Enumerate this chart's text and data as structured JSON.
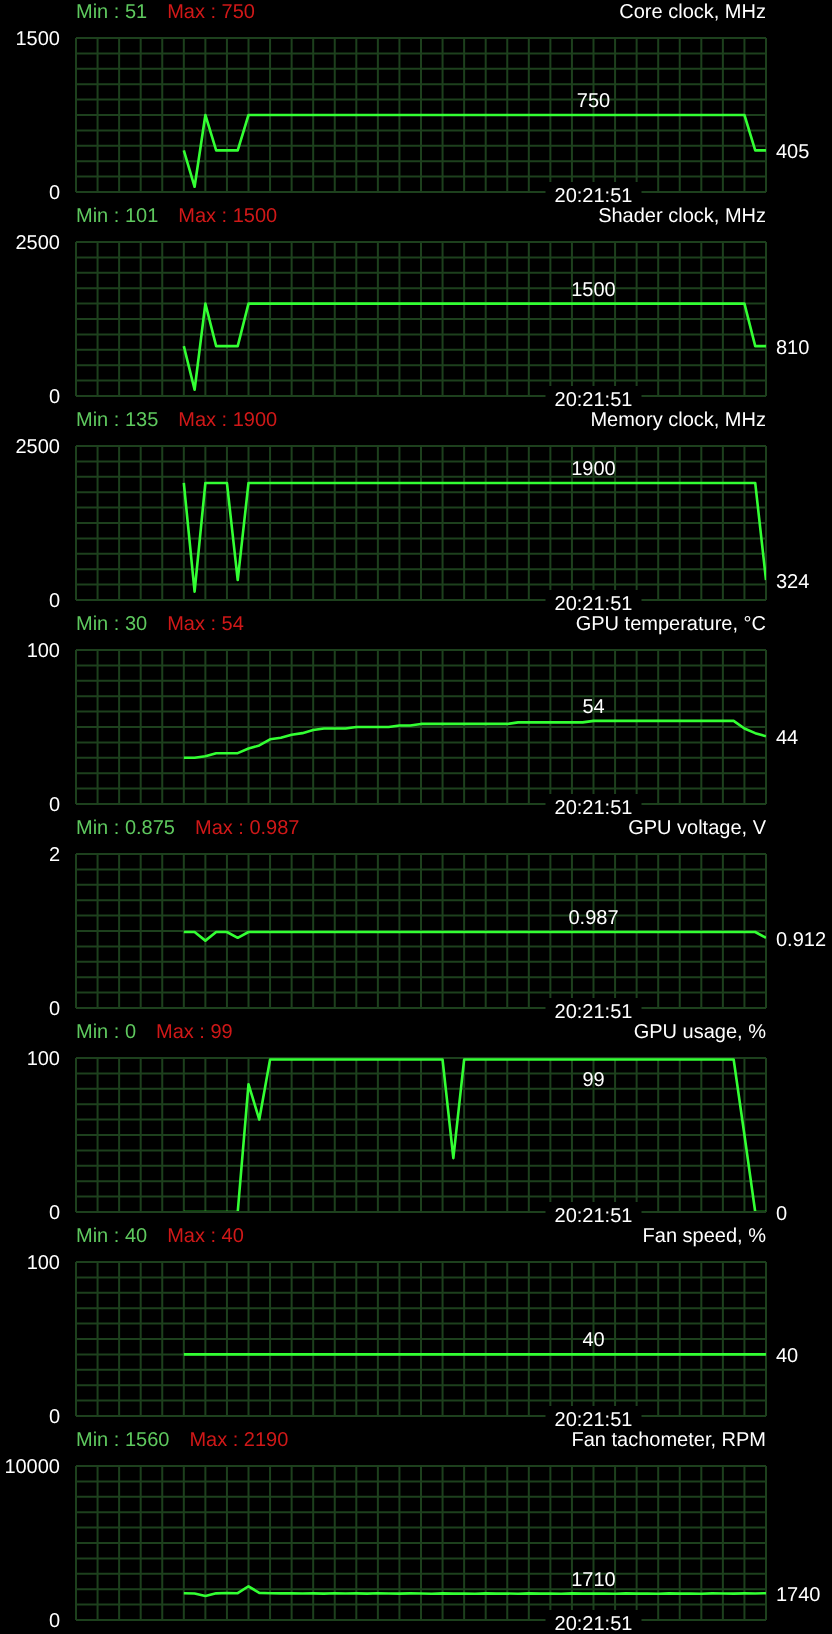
{
  "chart_data": [
    {
      "type": "line",
      "title": "Core clock, MHz",
      "annotations": [
        "Min : 51",
        "Max : 750",
        "20:21:51"
      ],
      "tick_labels": "y",
      "grid": true,
      "marker": "none",
      "ylim": [
        0,
        1500
      ],
      "yticks": [
        0,
        {
          "value": 150,
          "label": null
        },
        {
          "value": 300,
          "label": null
        },
        {
          "value": 450,
          "label": null
        },
        {
          "value": 600,
          "label": null
        },
        {
          "value": 750,
          "label": null
        },
        {
          "value": 900,
          "label": null
        },
        {
          "value": 1050,
          "label": null
        },
        {
          "value": 1200,
          "label": null
        },
        {
          "value": 1350,
          "label": null
        },
        1500
      ],
      "categories": [
        null,
        null,
        null,
        null,
        null,
        null,
        null,
        null,
        null,
        null,
        null,
        null,
        null,
        null,
        null,
        null,
        null,
        null,
        null,
        null,
        null,
        null,
        null,
        null,
        null,
        null,
        null,
        null,
        null,
        null,
        null,
        null,
        null,
        null,
        null,
        null,
        null,
        null,
        null,
        null,
        null,
        null,
        null,
        null,
        null,
        null,
        null,
        null,
        null,
        null,
        null,
        null,
        null,
        null,
        null,
        null,
        null,
        null,
        null,
        null,
        null,
        null,
        null,
        null,
        null
      ],
      "series": [
        {
          "color": "#33ff33",
          "values": [
            null,
            null,
            null,
            null,
            null,
            null,
            null,
            null,
            null,
            null,
            405,
            51,
            750,
            405,
            405,
            405,
            750,
            750,
            750,
            750,
            750,
            750,
            750,
            750,
            750,
            750,
            750,
            750,
            750,
            750,
            750,
            750,
            750,
            750,
            750,
            750,
            750,
            750,
            750,
            750,
            750,
            750,
            750,
            750,
            750,
            750,
            750,
            750,
            750,
            750,
            750,
            750,
            750,
            750,
            750,
            750,
            750,
            750,
            750,
            750,
            750,
            750,
            750,
            405,
            405
          ],
          "value_labels": [
            null,
            null,
            null,
            null,
            null,
            null,
            null,
            null,
            null,
            null,
            null,
            null,
            null,
            null,
            null,
            null,
            null,
            null,
            null,
            null,
            null,
            null,
            null,
            null,
            null,
            null,
            null,
            null,
            null,
            null,
            null,
            null,
            null,
            null,
            null,
            null,
            null,
            null,
            null,
            null,
            null,
            null,
            null,
            null,
            null,
            null,
            null,
            null,
            "750",
            null,
            null,
            null,
            null,
            null,
            null,
            null,
            null,
            null,
            null,
            null,
            null,
            null,
            null,
            null,
            "405"
          ]
        }
      ]
    },
    {
      "type": "line",
      "title": "Shader clock, MHz",
      "annotations": [
        "Min : 101",
        "Max : 1500",
        "20:21:51"
      ],
      "tick_labels": "y",
      "grid": true,
      "marker": "none",
      "ylim": [
        0,
        2500
      ],
      "yticks": [
        0,
        {
          "value": 250,
          "label": null
        },
        {
          "value": 500,
          "label": null
        },
        {
          "value": 750,
          "label": null
        },
        {
          "value": 1000,
          "label": null
        },
        {
          "value": 1250,
          "label": null
        },
        {
          "value": 1500,
          "label": null
        },
        {
          "value": 1750,
          "label": null
        },
        {
          "value": 2000,
          "label": null
        },
        {
          "value": 2250,
          "label": null
        },
        2500
      ],
      "categories": [
        null,
        null,
        null,
        null,
        null,
        null,
        null,
        null,
        null,
        null,
        null,
        null,
        null,
        null,
        null,
        null,
        null,
        null,
        null,
        null,
        null,
        null,
        null,
        null,
        null,
        null,
        null,
        null,
        null,
        null,
        null,
        null,
        null,
        null,
        null,
        null,
        null,
        null,
        null,
        null,
        null,
        null,
        null,
        null,
        null,
        null,
        null,
        null,
        null,
        null,
        null,
        null,
        null,
        null,
        null,
        null,
        null,
        null,
        null,
        null,
        null,
        null,
        null,
        null,
        null
      ],
      "series": [
        {
          "color": "#33ff33",
          "values": [
            null,
            null,
            null,
            null,
            null,
            null,
            null,
            null,
            null,
            null,
            810,
            101,
            1500,
            810,
            810,
            810,
            1500,
            1500,
            1500,
            1500,
            1500,
            1500,
            1500,
            1500,
            1500,
            1500,
            1500,
            1500,
            1500,
            1500,
            1500,
            1500,
            1500,
            1500,
            1500,
            1500,
            1500,
            1500,
            1500,
            1500,
            1500,
            1500,
            1500,
            1500,
            1500,
            1500,
            1500,
            1500,
            1500,
            1500,
            1500,
            1500,
            1500,
            1500,
            1500,
            1500,
            1500,
            1500,
            1500,
            1500,
            1500,
            1500,
            1500,
            810,
            810
          ],
          "value_labels": [
            null,
            null,
            null,
            null,
            null,
            null,
            null,
            null,
            null,
            null,
            null,
            null,
            null,
            null,
            null,
            null,
            null,
            null,
            null,
            null,
            null,
            null,
            null,
            null,
            null,
            null,
            null,
            null,
            null,
            null,
            null,
            null,
            null,
            null,
            null,
            null,
            null,
            null,
            null,
            null,
            null,
            null,
            null,
            null,
            null,
            null,
            null,
            null,
            "1500",
            null,
            null,
            null,
            null,
            null,
            null,
            null,
            null,
            null,
            null,
            null,
            null,
            null,
            null,
            null,
            "810"
          ]
        }
      ]
    },
    {
      "type": "line",
      "title": "Memory clock, MHz",
      "annotations": [
        "Min : 135",
        "Max : 1900",
        "20:21:51"
      ],
      "tick_labels": "y",
      "grid": true,
      "marker": "none",
      "ylim": [
        0,
        2500
      ],
      "yticks": [
        0,
        {
          "value": 250,
          "label": null
        },
        {
          "value": 500,
          "label": null
        },
        {
          "value": 750,
          "label": null
        },
        {
          "value": 1000,
          "label": null
        },
        {
          "value": 1250,
          "label": null
        },
        {
          "value": 1500,
          "label": null
        },
        {
          "value": 1750,
          "label": null
        },
        {
          "value": 2000,
          "label": null
        },
        {
          "value": 2250,
          "label": null
        },
        2500
      ],
      "categories": [
        null,
        null,
        null,
        null,
        null,
        null,
        null,
        null,
        null,
        null,
        null,
        null,
        null,
        null,
        null,
        null,
        null,
        null,
        null,
        null,
        null,
        null,
        null,
        null,
        null,
        null,
        null,
        null,
        null,
        null,
        null,
        null,
        null,
        null,
        null,
        null,
        null,
        null,
        null,
        null,
        null,
        null,
        null,
        null,
        null,
        null,
        null,
        null,
        null,
        null,
        null,
        null,
        null,
        null,
        null,
        null,
        null,
        null,
        null,
        null,
        null,
        null,
        null,
        null,
        null
      ],
      "series": [
        {
          "color": "#33ff33",
          "values": [
            null,
            null,
            null,
            null,
            null,
            null,
            null,
            null,
            null,
            null,
            1900,
            135,
            1900,
            1900,
            1900,
            324,
            1900,
            1900,
            1900,
            1900,
            1900,
            1900,
            1900,
            1900,
            1900,
            1900,
            1900,
            1900,
            1900,
            1900,
            1900,
            1900,
            1900,
            1900,
            1900,
            1900,
            1900,
            1900,
            1900,
            1900,
            1900,
            1900,
            1900,
            1900,
            1900,
            1900,
            1900,
            1900,
            1900,
            1900,
            1900,
            1900,
            1900,
            1900,
            1900,
            1900,
            1900,
            1900,
            1900,
            1900,
            1900,
            1900,
            1900,
            1900,
            324
          ],
          "value_labels": [
            null,
            null,
            null,
            null,
            null,
            null,
            null,
            null,
            null,
            null,
            null,
            null,
            null,
            null,
            null,
            null,
            null,
            null,
            null,
            null,
            null,
            null,
            null,
            null,
            null,
            null,
            null,
            null,
            null,
            null,
            null,
            null,
            null,
            null,
            null,
            null,
            null,
            null,
            null,
            null,
            null,
            null,
            null,
            null,
            null,
            null,
            null,
            null,
            "1900",
            null,
            null,
            null,
            null,
            null,
            null,
            null,
            null,
            null,
            null,
            null,
            null,
            null,
            null,
            null,
            "324"
          ]
        }
      ]
    },
    {
      "type": "line",
      "title": "GPU temperature, °C",
      "annotations": [
        "Min : 30",
        "Max : 54",
        "20:21:51"
      ],
      "tick_labels": "y",
      "grid": true,
      "marker": "none",
      "ylim": [
        0,
        100
      ],
      "yticks": [
        0,
        {
          "value": 10,
          "label": null
        },
        {
          "value": 20,
          "label": null
        },
        {
          "value": 30,
          "label": null
        },
        {
          "value": 40,
          "label": null
        },
        {
          "value": 50,
          "label": null
        },
        {
          "value": 60,
          "label": null
        },
        {
          "value": 70,
          "label": null
        },
        {
          "value": 80,
          "label": null
        },
        {
          "value": 90,
          "label": null
        },
        100
      ],
      "categories": [
        null,
        null,
        null,
        null,
        null,
        null,
        null,
        null,
        null,
        null,
        null,
        null,
        null,
        null,
        null,
        null,
        null,
        null,
        null,
        null,
        null,
        null,
        null,
        null,
        null,
        null,
        null,
        null,
        null,
        null,
        null,
        null,
        null,
        null,
        null,
        null,
        null,
        null,
        null,
        null,
        null,
        null,
        null,
        null,
        null,
        null,
        null,
        null,
        null,
        null,
        null,
        null,
        null,
        null,
        null,
        null,
        null,
        null,
        null,
        null,
        null,
        null,
        null,
        null,
        null
      ],
      "series": [
        {
          "color": "#33ff33",
          "values": [
            null,
            null,
            null,
            null,
            null,
            null,
            null,
            null,
            null,
            null,
            30,
            30,
            31,
            33,
            33,
            33,
            36,
            38,
            42,
            43,
            45,
            46,
            48,
            49,
            49,
            49,
            50,
            50,
            50,
            50,
            51,
            51,
            52,
            52,
            52,
            52,
            52,
            52,
            52,
            52,
            52,
            53,
            53,
            53,
            53,
            53,
            53,
            53,
            54,
            54,
            54,
            54,
            54,
            54,
            54,
            54,
            54,
            54,
            54,
            54,
            54,
            54,
            49,
            46,
            44
          ],
          "value_labels": [
            null,
            null,
            null,
            null,
            null,
            null,
            null,
            null,
            null,
            null,
            null,
            null,
            null,
            null,
            null,
            null,
            null,
            null,
            null,
            null,
            null,
            null,
            null,
            null,
            null,
            null,
            null,
            null,
            null,
            null,
            null,
            null,
            null,
            null,
            null,
            null,
            null,
            null,
            null,
            null,
            null,
            null,
            null,
            null,
            null,
            null,
            null,
            null,
            "54",
            null,
            null,
            null,
            null,
            null,
            null,
            null,
            null,
            null,
            null,
            null,
            null,
            null,
            null,
            null,
            "44"
          ]
        }
      ]
    },
    {
      "type": "line",
      "title": "GPU voltage, V",
      "annotations": [
        "Min : 0.875",
        "Max : 0.987",
        "20:21:51"
      ],
      "tick_labels": "y",
      "grid": true,
      "marker": "none",
      "ylim": [
        0,
        2
      ],
      "yticks": [
        0,
        {
          "value": 0.2,
          "label": null
        },
        {
          "value": 0.4,
          "label": null
        },
        {
          "value": 0.6,
          "label": null
        },
        {
          "value": 0.8,
          "label": null
        },
        {
          "value": 1,
          "label": null
        },
        {
          "value": 1.2,
          "label": null
        },
        {
          "value": 1.4,
          "label": null
        },
        {
          "value": 1.6,
          "label": null
        },
        {
          "value": 1.8,
          "label": null
        },
        2
      ],
      "categories": [
        null,
        null,
        null,
        null,
        null,
        null,
        null,
        null,
        null,
        null,
        null,
        null,
        null,
        null,
        null,
        null,
        null,
        null,
        null,
        null,
        null,
        null,
        null,
        null,
        null,
        null,
        null,
        null,
        null,
        null,
        null,
        null,
        null,
        null,
        null,
        null,
        null,
        null,
        null,
        null,
        null,
        null,
        null,
        null,
        null,
        null,
        null,
        null,
        null,
        null,
        null,
        null,
        null,
        null,
        null,
        null,
        null,
        null,
        null,
        null,
        null,
        null,
        null,
        null,
        null
      ],
      "series": [
        {
          "color": "#33ff33",
          "values": [
            null,
            null,
            null,
            null,
            null,
            null,
            null,
            null,
            null,
            null,
            0.987,
            0.987,
            0.875,
            0.987,
            0.987,
            0.912,
            0.987,
            0.987,
            0.987,
            0.987,
            0.987,
            0.987,
            0.987,
            0.987,
            0.987,
            0.987,
            0.987,
            0.987,
            0.987,
            0.987,
            0.987,
            0.987,
            0.987,
            0.987,
            0.987,
            0.987,
            0.987,
            0.987,
            0.987,
            0.987,
            0.987,
            0.987,
            0.987,
            0.987,
            0.987,
            0.987,
            0.987,
            0.987,
            0.987,
            0.987,
            0.987,
            0.987,
            0.987,
            0.987,
            0.987,
            0.987,
            0.987,
            0.987,
            0.987,
            0.987,
            0.987,
            0.987,
            0.987,
            0.987,
            0.912
          ],
          "value_labels": [
            null,
            null,
            null,
            null,
            null,
            null,
            null,
            null,
            null,
            null,
            null,
            null,
            null,
            null,
            null,
            null,
            null,
            null,
            null,
            null,
            null,
            null,
            null,
            null,
            null,
            null,
            null,
            null,
            null,
            null,
            null,
            null,
            null,
            null,
            null,
            null,
            null,
            null,
            null,
            null,
            null,
            null,
            null,
            null,
            null,
            null,
            null,
            null,
            "0.987",
            null,
            null,
            null,
            null,
            null,
            null,
            null,
            null,
            null,
            null,
            null,
            null,
            null,
            null,
            null,
            "0.912"
          ]
        }
      ]
    },
    {
      "type": "line",
      "title": "GPU usage, %",
      "annotations": [
        "Min : 0",
        "Max : 99",
        "20:21:51"
      ],
      "tick_labels": "y",
      "grid": true,
      "marker": "none",
      "ylim": [
        0,
        100
      ],
      "yticks": [
        0,
        {
          "value": 10,
          "label": null
        },
        {
          "value": 20,
          "label": null
        },
        {
          "value": 30,
          "label": null
        },
        {
          "value": 40,
          "label": null
        },
        {
          "value": 50,
          "label": null
        },
        {
          "value": 60,
          "label": null
        },
        {
          "value": 70,
          "label": null
        },
        {
          "value": 80,
          "label": null
        },
        {
          "value": 90,
          "label": null
        },
        100
      ],
      "categories": [
        null,
        null,
        null,
        null,
        null,
        null,
        null,
        null,
        null,
        null,
        null,
        null,
        null,
        null,
        null,
        null,
        null,
        null,
        null,
        null,
        null,
        null,
        null,
        null,
        null,
        null,
        null,
        null,
        null,
        null,
        null,
        null,
        null,
        null,
        null,
        null,
        null,
        null,
        null,
        null,
        null,
        null,
        null,
        null,
        null,
        null,
        null,
        null,
        null,
        null,
        null,
        null,
        null,
        null,
        null,
        null,
        null,
        null,
        null,
        null,
        null,
        null,
        null,
        null,
        null
      ],
      "series": [
        {
          "color": "#33ff33",
          "values": [
            null,
            null,
            null,
            null,
            null,
            null,
            null,
            null,
            null,
            null,
            0,
            0,
            0,
            0,
            0,
            0,
            83,
            60,
            99,
            99,
            99,
            99,
            99,
            99,
            99,
            99,
            99,
            99,
            99,
            99,
            99,
            99,
            99,
            99,
            99,
            35,
            99,
            99,
            99,
            99,
            99,
            99,
            99,
            99,
            99,
            99,
            99,
            99,
            99,
            99,
            99,
            99,
            99,
            99,
            99,
            99,
            99,
            99,
            99,
            99,
            99,
            99,
            50,
            0,
            0
          ],
          "value_labels": [
            null,
            null,
            null,
            null,
            null,
            null,
            null,
            null,
            null,
            null,
            null,
            null,
            null,
            null,
            null,
            null,
            null,
            null,
            null,
            null,
            null,
            null,
            null,
            null,
            null,
            null,
            null,
            null,
            null,
            null,
            null,
            null,
            null,
            null,
            null,
            null,
            null,
            null,
            null,
            null,
            null,
            null,
            null,
            null,
            null,
            null,
            null,
            null,
            "99",
            null,
            null,
            null,
            null,
            null,
            null,
            null,
            null,
            null,
            null,
            null,
            null,
            null,
            null,
            null,
            "0"
          ]
        }
      ]
    },
    {
      "type": "line",
      "title": "Fan speed, %",
      "annotations": [
        "Min : 40",
        "Max : 40",
        "20:21:51"
      ],
      "tick_labels": "y",
      "grid": true,
      "marker": "none",
      "ylim": [
        0,
        100
      ],
      "yticks": [
        0,
        {
          "value": 10,
          "label": null
        },
        {
          "value": 20,
          "label": null
        },
        {
          "value": 30,
          "label": null
        },
        {
          "value": 40,
          "label": null
        },
        {
          "value": 50,
          "label": null
        },
        {
          "value": 60,
          "label": null
        },
        {
          "value": 70,
          "label": null
        },
        {
          "value": 80,
          "label": null
        },
        {
          "value": 90,
          "label": null
        },
        100
      ],
      "categories": [
        null,
        null,
        null,
        null,
        null,
        null,
        null,
        null,
        null,
        null,
        null,
        null,
        null,
        null,
        null,
        null,
        null,
        null,
        null,
        null,
        null,
        null,
        null,
        null,
        null,
        null,
        null,
        null,
        null,
        null,
        null,
        null,
        null,
        null,
        null,
        null,
        null,
        null,
        null,
        null,
        null,
        null,
        null,
        null,
        null,
        null,
        null,
        null,
        null,
        null,
        null,
        null,
        null,
        null,
        null,
        null,
        null,
        null,
        null,
        null,
        null,
        null,
        null,
        null,
        null
      ],
      "series": [
        {
          "color": "#33ff33",
          "values": [
            null,
            null,
            null,
            null,
            null,
            null,
            null,
            null,
            null,
            null,
            40,
            40,
            40,
            40,
            40,
            40,
            40,
            40,
            40,
            40,
            40,
            40,
            40,
            40,
            40,
            40,
            40,
            40,
            40,
            40,
            40,
            40,
            40,
            40,
            40,
            40,
            40,
            40,
            40,
            40,
            40,
            40,
            40,
            40,
            40,
            40,
            40,
            40,
            40,
            40,
            40,
            40,
            40,
            40,
            40,
            40,
            40,
            40,
            40,
            40,
            40,
            40,
            40,
            40,
            40
          ],
          "value_labels": [
            null,
            null,
            null,
            null,
            null,
            null,
            null,
            null,
            null,
            null,
            null,
            null,
            null,
            null,
            null,
            null,
            null,
            null,
            null,
            null,
            null,
            null,
            null,
            null,
            null,
            null,
            null,
            null,
            null,
            null,
            null,
            null,
            null,
            null,
            null,
            null,
            null,
            null,
            null,
            null,
            null,
            null,
            null,
            null,
            null,
            null,
            null,
            null,
            "40",
            null,
            null,
            null,
            null,
            null,
            null,
            null,
            null,
            null,
            null,
            null,
            null,
            null,
            null,
            null,
            "40"
          ]
        }
      ]
    },
    {
      "type": "line",
      "title": "Fan tachometer, RPM",
      "annotations": [
        "Min : 1560",
        "Max : 2190",
        "20:21:51"
      ],
      "tick_labels": "y",
      "grid": true,
      "marker": "none",
      "ylim": [
        0,
        10000
      ],
      "yticks": [
        0,
        {
          "value": 1000,
          "label": null
        },
        {
          "value": 2000,
          "label": null
        },
        {
          "value": 3000,
          "label": null
        },
        {
          "value": 4000,
          "label": null
        },
        {
          "value": 5000,
          "label": null
        },
        {
          "value": 6000,
          "label": null
        },
        {
          "value": 7000,
          "label": null
        },
        {
          "value": 8000,
          "label": null
        },
        {
          "value": 9000,
          "label": null
        },
        10000
      ],
      "categories": [
        null,
        null,
        null,
        null,
        null,
        null,
        null,
        null,
        null,
        null,
        null,
        null,
        null,
        null,
        null,
        null,
        null,
        null,
        null,
        null,
        null,
        null,
        null,
        null,
        null,
        null,
        null,
        null,
        null,
        null,
        null,
        null,
        null,
        null,
        null,
        null,
        null,
        null,
        null,
        null,
        null,
        null,
        null,
        null,
        null,
        null,
        null,
        null,
        null,
        null,
        null,
        null,
        null,
        null,
        null,
        null,
        null,
        null,
        null,
        null,
        null,
        null,
        null,
        null,
        null
      ],
      "series": [
        {
          "color": "#33ff33",
          "values": [
            null,
            null,
            null,
            null,
            null,
            null,
            null,
            null,
            null,
            null,
            1740,
            1720,
            1560,
            1730,
            1750,
            1740,
            2190,
            1760,
            1740,
            1730,
            1740,
            1720,
            1730,
            1710,
            1740,
            1720,
            1730,
            1710,
            1740,
            1720,
            1710,
            1730,
            1720,
            1700,
            1730,
            1710,
            1720,
            1700,
            1730,
            1710,
            1720,
            1700,
            1730,
            1710,
            1720,
            1700,
            1730,
            1710,
            1710,
            1720,
            1700,
            1730,
            1710,
            1720,
            1700,
            1730,
            1710,
            1720,
            1700,
            1730,
            1720,
            1710,
            1730,
            1720,
            1740
          ],
          "value_labels": [
            null,
            null,
            null,
            null,
            null,
            null,
            null,
            null,
            null,
            null,
            null,
            null,
            null,
            null,
            null,
            null,
            null,
            null,
            null,
            null,
            null,
            null,
            null,
            null,
            null,
            null,
            null,
            null,
            null,
            null,
            null,
            null,
            null,
            null,
            null,
            null,
            null,
            null,
            null,
            null,
            null,
            null,
            null,
            null,
            null,
            null,
            null,
            null,
            "1710",
            null,
            null,
            null,
            null,
            null,
            null,
            null,
            null,
            null,
            null,
            null,
            null,
            null,
            null,
            null,
            "1740"
          ]
        }
      ]
    }
  ]
}
